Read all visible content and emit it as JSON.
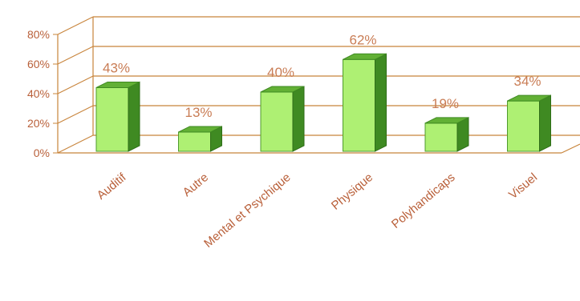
{
  "chart_data": {
    "type": "bar",
    "categories": [
      "Auditif",
      "Autre",
      "Mental et Psychique",
      "Physique",
      "Polyhandicaps",
      "Visuel"
    ],
    "values": [
      43,
      13,
      40,
      62,
      19,
      34
    ],
    "data_labels": [
      "43%",
      "13%",
      "40%",
      "62%",
      "19%",
      "34%"
    ],
    "y_ticks": [
      "0%",
      "20%",
      "40%",
      "60%",
      "80%"
    ],
    "ylim": [
      0,
      80
    ],
    "grid": true,
    "legend": "none",
    "style": "3d-column",
    "colors": {
      "bar_front": "#aef073",
      "bar_side": "#3f8a22",
      "bar_top": "#62b035",
      "grid_line": "#c8843a",
      "text": "#b9603a",
      "data_label": "#c97d55"
    }
  }
}
